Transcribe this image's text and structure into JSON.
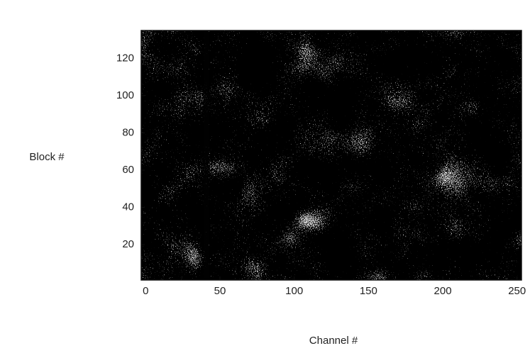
{
  "chart_data": {
    "type": "raster",
    "xlabel": "Channel #",
    "ylabel": "Block #",
    "xlim": [
      -3,
      253
    ],
    "ylim": [
      1,
      135
    ],
    "xticks": [
      0,
      50,
      100,
      150,
      200,
      250
    ],
    "yticks": [
      20,
      40,
      60,
      80,
      100,
      120
    ],
    "color": "#111111"
  }
}
